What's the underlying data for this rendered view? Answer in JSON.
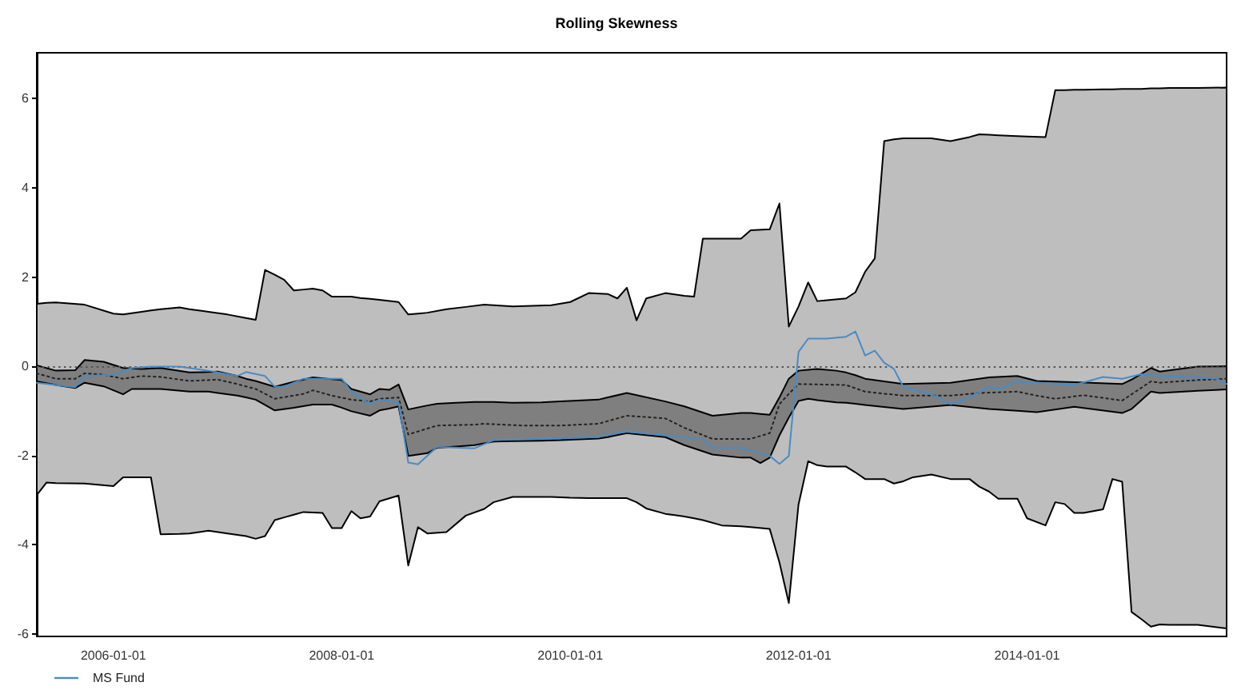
{
  "chart_data": {
    "type": "line",
    "title": "Rolling Skewness",
    "xlim": [
      "2005-05",
      "2015-10"
    ],
    "xticks": [
      "2006-01-01",
      "2008-01-01",
      "2010-01-01",
      "2012-01-01",
      "2014-01-01"
    ],
    "ylim": [
      -6.06,
      7.03
    ],
    "yticks": [
      -6,
      -4,
      -2,
      0,
      2,
      4,
      6
    ],
    "grid": false,
    "legend": "bottom left",
    "ref_lines": [
      {
        "axis": "y",
        "value": 0,
        "line_style": "dotted",
        "color": "#555555"
      }
    ],
    "series": [
      {
        "color": "#bebebe",
        "x": [
          "2005-05",
          "2005-06",
          "2005-07",
          "2005-10",
          "2006-01",
          "2006-02",
          "2006-04",
          "2006-05",
          "2006-06",
          "2006-08",
          "2006-09",
          "2006-11",
          "2007-01",
          "2007-03",
          "2007-04",
          "2007-05",
          "2007-06",
          "2007-07",
          "2007-08",
          "2007-09",
          "2007-10",
          "2007-11",
          "2007-12",
          "2008-01",
          "2008-02",
          "2008-03",
          "2008-04",
          "2008-05",
          "2008-07",
          "2008-08",
          "2008-09",
          "2008-10",
          "2008-12",
          "2009-02",
          "2009-04",
          "2009-05",
          "2009-07",
          "2009-11",
          "2010-01",
          "2010-03",
          "2010-05",
          "2010-06",
          "2010-07",
          "2010-08",
          "2010-09",
          "2010-11",
          "2010-12",
          "2011-01",
          "2011-02",
          "2011-03",
          "2011-05",
          "2011-07",
          "2011-08",
          "2011-10",
          "2011-11",
          "2011-12",
          "2012-01",
          "2012-02",
          "2012-03",
          "2012-04",
          "2012-06",
          "2012-07",
          "2012-08",
          "2012-09",
          "2012-10",
          "2012-11",
          "2012-12",
          "2013-01",
          "2013-03",
          "2013-05",
          "2013-07",
          "2013-08",
          "2013-09",
          "2013-10",
          "2013-12",
          "2014-01",
          "2014-03",
          "2014-04",
          "2014-05",
          "2014-06",
          "2014-07",
          "2014-09",
          "2014-10",
          "2014-11",
          "2014-12",
          "2015-01",
          "2015-02",
          "2015-03",
          "2015-04",
          "2015-07",
          "2015-10"
        ],
        "values": [
          null,
          null,
          null,
          null,
          null,
          null,
          null,
          null,
          null,
          null,
          null,
          null,
          null,
          null,
          null,
          null,
          null,
          null,
          null,
          null,
          null,
          null,
          null,
          null,
          null,
          null,
          null,
          null,
          null,
          null,
          null,
          null,
          null,
          null,
          null,
          null,
          null,
          null,
          null,
          null,
          null,
          null,
          null,
          null,
          null,
          null,
          null,
          null,
          null,
          null,
          null,
          null,
          null,
          null,
          null,
          null,
          null,
          null,
          null,
          null,
          null,
          null,
          null,
          null,
          null,
          null,
          null,
          null,
          null,
          null,
          null,
          null,
          null,
          null,
          null,
          null,
          null,
          null,
          null,
          null,
          null,
          null,
          null,
          null,
          null,
          null,
          null,
          null,
          null,
          null,
          null
        ],
        "upper": [
          1.4,
          1.42,
          1.43,
          1.38,
          1.18,
          1.16,
          1.22,
          1.25,
          1.28,
          1.32,
          1.28,
          1.22,
          1.16,
          1.08,
          1.04,
          2.16,
          2.05,
          1.94,
          1.7,
          1.72,
          1.74,
          1.7,
          1.56,
          1.56,
          1.56,
          1.53,
          1.51,
          1.49,
          1.44,
          1.16,
          1.18,
          1.2,
          1.28,
          1.33,
          1.38,
          1.37,
          1.34,
          1.37,
          1.44,
          1.64,
          1.62,
          1.52,
          1.76,
          1.03,
          1.52,
          1.64,
          1.61,
          1.58,
          1.56,
          2.86,
          2.86,
          2.86,
          3.05,
          3.07,
          3.65,
          0.89,
          1.34,
          1.88,
          1.46,
          1.48,
          1.52,
          1.66,
          2.12,
          2.42,
          5.05,
          5.09,
          5.11,
          5.11,
          5.11,
          5.05,
          5.14,
          5.2,
          5.19,
          5.18,
          5.16,
          5.15,
          5.14,
          6.19,
          6.19,
          6.2,
          6.2,
          6.21,
          6.21,
          6.22,
          6.22,
          6.22,
          6.23,
          6.23,
          6.24,
          6.24,
          6.25
        ],
        "lower": [
          -2.89,
          -2.61,
          -2.62,
          -2.63,
          -2.69,
          -2.49,
          -2.49,
          -2.49,
          -3.77,
          -3.76,
          -3.75,
          -3.69,
          -3.75,
          -3.81,
          -3.87,
          -3.81,
          -3.45,
          -3.39,
          -3.33,
          -3.27,
          -3.28,
          -3.29,
          -3.63,
          -3.63,
          -3.25,
          -3.41,
          -3.37,
          -3.03,
          -2.9,
          -4.47,
          -3.61,
          -3.75,
          -3.72,
          -3.35,
          -3.2,
          -3.05,
          -2.93,
          -2.93,
          -2.95,
          -2.96,
          -2.96,
          -2.96,
          -2.96,
          -3.05,
          -3.19,
          -3.31,
          -3.34,
          -3.37,
          -3.41,
          -3.45,
          -3.57,
          -3.59,
          -3.61,
          -3.65,
          -4.4,
          -5.31,
          -3.1,
          -2.13,
          -2.22,
          -2.25,
          -2.25,
          -2.38,
          -2.53,
          -2.53,
          -2.53,
          -2.63,
          -2.58,
          -2.49,
          -2.43,
          -2.53,
          -2.53,
          -2.7,
          -2.81,
          -2.97,
          -2.97,
          -3.41,
          -3.57,
          -3.05,
          -3.09,
          -3.29,
          -3.29,
          -3.21,
          -2.53,
          -2.59,
          -5.51,
          -5.67,
          -5.84,
          -5.79,
          -5.8,
          -5.8,
          -5.88
        ]
      },
      {
        "color": "#7f7f7f",
        "x": [
          "2005-05",
          "2005-07",
          "2005-09",
          "2005-10",
          "2005-12",
          "2006-02",
          "2006-03",
          "2006-04",
          "2006-06",
          "2006-09",
          "2006-11",
          "2006-12",
          "2007-02",
          "2007-03",
          "2007-04",
          "2007-06",
          "2007-08",
          "2007-10",
          "2007-12",
          "2008-01",
          "2008-02",
          "2008-04",
          "2008-05",
          "2008-06",
          "2008-07",
          "2008-08",
          "2008-10",
          "2008-11",
          "2009-01",
          "2009-03",
          "2009-05",
          "2009-07",
          "2009-10",
          "2009-12",
          "2010-04",
          "2010-05",
          "2010-07",
          "2010-11",
          "2011-01",
          "2011-04",
          "2011-07",
          "2011-08",
          "2011-09",
          "2011-10",
          "2011-11",
          "2011-12",
          "2012-01",
          "2012-02",
          "2012-03",
          "2012-05",
          "2012-06",
          "2012-07",
          "2012-08",
          "2012-12",
          "2013-05",
          "2013-09",
          "2013-12",
          "2014-02",
          "2014-06",
          "2014-11",
          "2014-12",
          "2015-02",
          "2015-03",
          "2015-07",
          "2015-10"
        ],
        "values": [
          null,
          null,
          null,
          null,
          null,
          null,
          null,
          null,
          null,
          null,
          null,
          null,
          null,
          null,
          null,
          null,
          null,
          null,
          null,
          null,
          null,
          null,
          null,
          null,
          null,
          null,
          null,
          null,
          null,
          null,
          null,
          null,
          null,
          null,
          null,
          null,
          null,
          null,
          null,
          null,
          null,
          null,
          null,
          null,
          null,
          null,
          null,
          null,
          null,
          null,
          null,
          null,
          null,
          null,
          null,
          null,
          null,
          null,
          null,
          null,
          null,
          null,
          null,
          null,
          null
        ],
        "upper": [
          0.02,
          -0.1,
          -0.09,
          0.14,
          0.1,
          -0.04,
          -0.05,
          -0.06,
          -0.04,
          -0.14,
          -0.13,
          -0.12,
          -0.22,
          -0.28,
          -0.33,
          -0.46,
          -0.35,
          -0.25,
          -0.29,
          -0.31,
          -0.51,
          -0.63,
          -0.51,
          -0.53,
          -0.41,
          -0.97,
          -0.88,
          -0.84,
          -0.82,
          -0.8,
          -0.8,
          -0.82,
          -0.81,
          -0.79,
          -0.75,
          -0.7,
          -0.6,
          -0.79,
          -0.9,
          -1.11,
          -1.05,
          -1.05,
          -1.07,
          -1.09,
          -0.7,
          -0.28,
          -0.1,
          -0.08,
          -0.06,
          -0.1,
          -0.14,
          -0.2,
          -0.28,
          -0.4,
          -0.37,
          -0.25,
          -0.22,
          -0.33,
          -0.36,
          -0.4,
          -0.3,
          -0.04,
          -0.12,
          -0.01,
          0.0
        ],
        "lower": [
          -0.34,
          -0.42,
          -0.49,
          -0.37,
          -0.45,
          -0.63,
          -0.51,
          -0.51,
          -0.51,
          -0.57,
          -0.57,
          -0.6,
          -0.66,
          -0.7,
          -0.75,
          -0.99,
          -0.93,
          -0.86,
          -0.86,
          -0.93,
          -1.01,
          -1.11,
          -0.99,
          -0.95,
          -0.9,
          -2.01,
          -1.95,
          -1.83,
          -1.8,
          -1.77,
          -1.69,
          -1.68,
          -1.67,
          -1.66,
          -1.62,
          -1.59,
          -1.5,
          -1.59,
          -1.77,
          -1.98,
          -2.05,
          -2.05,
          -2.17,
          -2.05,
          -1.55,
          -1.15,
          -0.78,
          -0.73,
          -0.76,
          -0.81,
          -0.82,
          -0.84,
          -0.87,
          -0.96,
          -0.87,
          -0.96,
          -1.0,
          -1.03,
          -0.91,
          -1.05,
          -0.96,
          -0.57,
          -0.6,
          -0.55,
          -0.52
        ]
      },
      {
        "color": "#222222",
        "line_style": "dotted",
        "x": [
          "2005-05",
          "2005-07",
          "2005-09",
          "2005-10",
          "2005-12",
          "2006-02",
          "2006-04",
          "2006-06",
          "2006-09",
          "2006-12",
          "2007-02",
          "2007-04",
          "2007-06",
          "2007-09",
          "2007-10",
          "2007-12",
          "2008-02",
          "2008-04",
          "2008-05",
          "2008-07",
          "2008-08",
          "2008-11",
          "2009-03",
          "2009-04",
          "2009-08",
          "2009-12",
          "2010-04",
          "2010-07",
          "2010-11",
          "2011-01",
          "2011-04",
          "2011-08",
          "2011-10",
          "2011-11",
          "2011-12",
          "2012-01",
          "2012-06",
          "2012-08",
          "2012-12",
          "2013-05",
          "2013-08",
          "2013-12",
          "2014-02",
          "2014-04",
          "2014-07",
          "2014-11",
          "2015-02",
          "2015-03",
          "2015-07",
          "2015-10"
        ],
        "values": [
          -0.16,
          -0.28,
          -0.28,
          -0.16,
          -0.19,
          -0.28,
          -0.22,
          -0.24,
          -0.33,
          -0.3,
          -0.4,
          -0.51,
          -0.73,
          -0.62,
          -0.54,
          -0.66,
          -0.75,
          -0.79,
          -0.73,
          -0.7,
          -1.53,
          -1.33,
          -1.31,
          -1.29,
          -1.33,
          -1.33,
          -1.29,
          -1.11,
          -1.17,
          -1.38,
          -1.63,
          -1.63,
          -1.5,
          -0.85,
          -0.62,
          -0.4,
          -0.42,
          -0.57,
          -0.66,
          -0.66,
          -0.6,
          -0.57,
          -0.66,
          -0.73,
          -0.65,
          -0.77,
          -0.34,
          -0.37,
          -0.31,
          -0.28
        ]
      },
      {
        "name": "MS Fund",
        "color": "#4a8bc4",
        "x": [
          "2005-05",
          "2005-07",
          "2005-09",
          "2005-10",
          "2006-01",
          "2006-03",
          "2006-05",
          "2006-08",
          "2006-11",
          "2007-02",
          "2007-03",
          "2007-05",
          "2007-06",
          "2007-07",
          "2007-09",
          "2008-01",
          "2008-02",
          "2008-04",
          "2008-05",
          "2008-07",
          "2008-08",
          "2008-09",
          "2008-11",
          "2009-03",
          "2009-05",
          "2010-04",
          "2010-05",
          "2010-07",
          "2010-11",
          "2011-03",
          "2011-04",
          "2011-07",
          "2011-10",
          "2011-11",
          "2011-12",
          "2012-01",
          "2012-02",
          "2012-04",
          "2012-06",
          "2012-07",
          "2012-08",
          "2012-09",
          "2012-10",
          "2012-11",
          "2012-12",
          "2013-03",
          "2013-05",
          "2013-07",
          "2013-09",
          "2013-10",
          "2013-12",
          "2014-04",
          "2014-06",
          "2014-09",
          "2014-11",
          "2015-01",
          "2015-03",
          "2015-07",
          "2015-09",
          "2015-10"
        ],
        "values": [
          -0.37,
          -0.42,
          -0.47,
          -0.22,
          -0.19,
          -0.04,
          -0.01,
          -0.01,
          -0.1,
          -0.22,
          -0.13,
          -0.22,
          -0.46,
          -0.46,
          -0.28,
          -0.28,
          -0.57,
          -0.85,
          -0.75,
          -0.81,
          -2.16,
          -2.2,
          -1.81,
          -1.84,
          -1.66,
          -1.59,
          -1.53,
          -1.47,
          -1.55,
          -1.65,
          -1.83,
          -1.83,
          -2.01,
          -2.19,
          -2.01,
          0.32,
          0.62,
          0.62,
          0.66,
          0.78,
          0.24,
          0.35,
          0.08,
          -0.06,
          -0.46,
          -0.63,
          -0.85,
          -0.71,
          -0.46,
          -0.51,
          -0.34,
          -0.4,
          -0.42,
          -0.24,
          -0.28,
          -0.18,
          -0.22,
          -0.25,
          -0.28,
          -0.4
        ]
      }
    ]
  }
}
